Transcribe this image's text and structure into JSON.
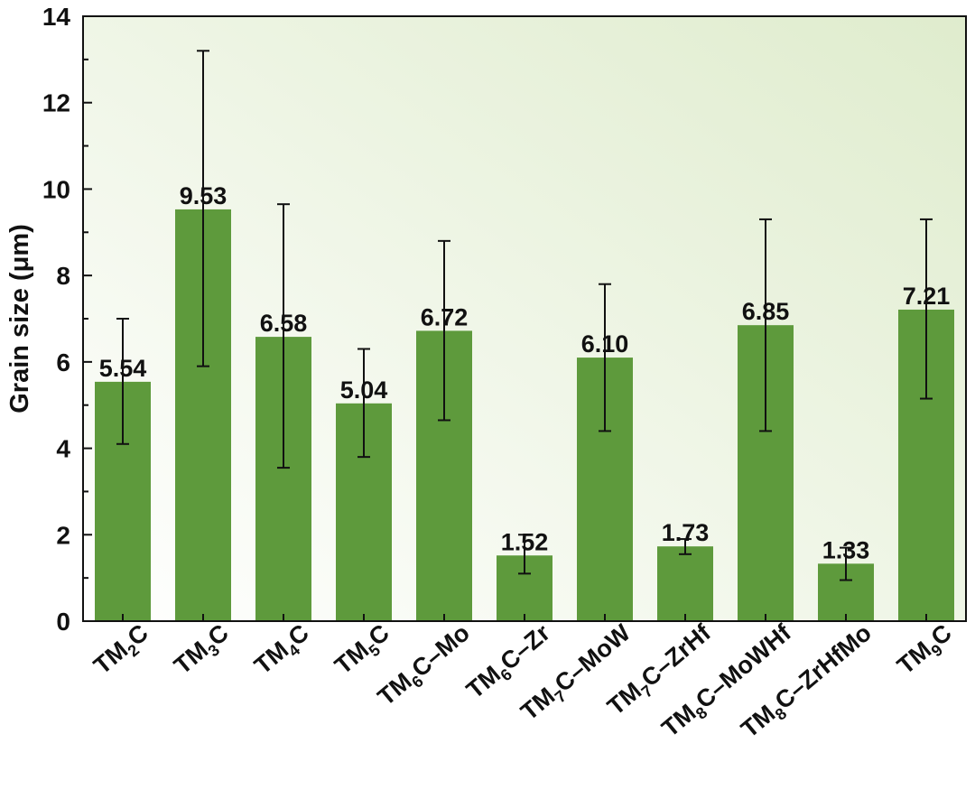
{
  "chart_data": {
    "type": "bar",
    "ylabel": "Grain size (μm)",
    "ylim": [
      0,
      14
    ],
    "yticks": [
      0,
      2,
      4,
      6,
      8,
      10,
      12,
      14
    ],
    "grid": false,
    "categories": [
      "TM2C",
      "TM3C",
      "TM4C",
      "TM5C",
      "TM6C–Mo",
      "TM6C–Zr",
      "TM7C–MoW",
      "TM7C–ZrHf",
      "TM8C–MoWHf",
      "TM8C–ZrHfMo",
      "TM9C"
    ],
    "category_labels": [
      {
        "main": "TM",
        "sub": "2",
        "rest": "C"
      },
      {
        "main": "TM",
        "sub": "3",
        "rest": "C"
      },
      {
        "main": "TM",
        "sub": "4",
        "rest": "C"
      },
      {
        "main": "TM",
        "sub": "5",
        "rest": "C"
      },
      {
        "main": "TM",
        "sub": "6",
        "rest": "C–Mo"
      },
      {
        "main": "TM",
        "sub": "6",
        "rest": "C–Zr"
      },
      {
        "main": "TM",
        "sub": "7",
        "rest": "C–MoW"
      },
      {
        "main": "TM",
        "sub": "7",
        "rest": "C–ZrHf"
      },
      {
        "main": "TM",
        "sub": "8",
        "rest": "C–MoWHf"
      },
      {
        "main": "TM",
        "sub": "8",
        "rest": "C–ZrHfMo"
      },
      {
        "main": "TM",
        "sub": "9",
        "rest": "C"
      }
    ],
    "values": [
      5.54,
      9.53,
      6.58,
      5.04,
      6.72,
      1.52,
      6.1,
      1.73,
      6.85,
      1.33,
      7.21
    ],
    "value_labels": [
      "5.54",
      "9.53",
      "6.58",
      "5.04",
      "6.72",
      "1.52",
      "6.10",
      "1.73",
      "6.85",
      "1.33",
      "7.21"
    ],
    "error_low": [
      4.1,
      5.9,
      3.55,
      3.8,
      4.65,
      1.1,
      4.4,
      1.55,
      4.4,
      0.95,
      5.15
    ],
    "error_high": [
      7.0,
      13.2,
      9.65,
      6.3,
      8.8,
      2.0,
      7.8,
      1.9,
      9.3,
      1.7,
      9.3
    ],
    "colors": {
      "bar": "#5e9a3c",
      "plot_bg_light": "#ffffff",
      "plot_bg_tint": "#dfeccd",
      "text": "#111111",
      "axis": "#111111"
    }
  }
}
